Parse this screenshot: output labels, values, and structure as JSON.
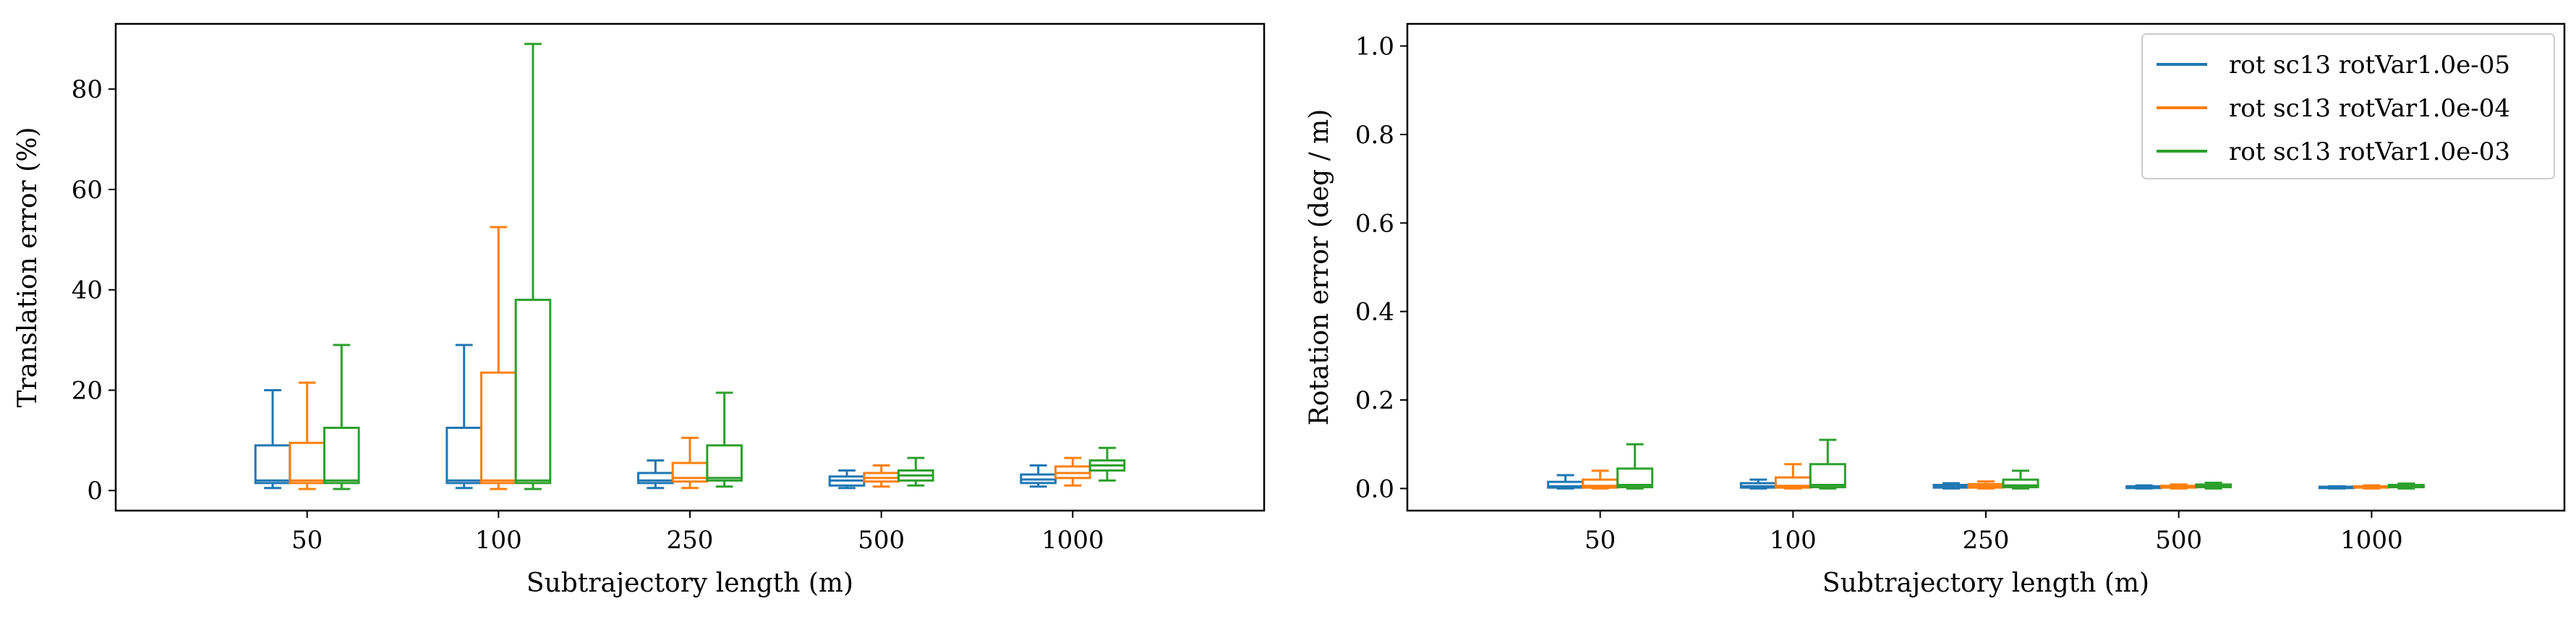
{
  "chart_data": [
    {
      "type": "box",
      "title": "",
      "xlabel": "Subtrajectory length (m)",
      "ylabel": "Translation error (%)",
      "categories": [
        "50",
        "100",
        "250",
        "500",
        "1000"
      ],
      "ylim": [
        -4,
        93
      ],
      "yticks": [
        0,
        20,
        40,
        60,
        80
      ],
      "series": [
        {
          "name": "rot sc13 rotVar1.0e-05",
          "color": "#1f77b4",
          "boxes": [
            {
              "whislo": 0.5,
              "q1": 1.5,
              "med": 2.0,
              "q3": 9.0,
              "whishi": 20.0
            },
            {
              "whislo": 0.5,
              "q1": 1.5,
              "med": 2.0,
              "q3": 12.5,
              "whishi": 29.0
            },
            {
              "whislo": 0.5,
              "q1": 1.5,
              "med": 2.0,
              "q3": 3.5,
              "whishi": 6.0
            },
            {
              "whislo": 0.5,
              "q1": 1.0,
              "med": 2.0,
              "q3": 2.8,
              "whishi": 4.0
            },
            {
              "whislo": 0.8,
              "q1": 1.5,
              "med": 2.2,
              "q3": 3.2,
              "whishi": 5.0
            }
          ]
        },
        {
          "name": "rot sc13 rotVar1.0e-04",
          "color": "#ff7f0e",
          "boxes": [
            {
              "whislo": 0.3,
              "q1": 1.5,
              "med": 2.0,
              "q3": 9.5,
              "whishi": 21.5
            },
            {
              "whislo": 0.3,
              "q1": 1.5,
              "med": 2.0,
              "q3": 23.5,
              "whishi": 52.5
            },
            {
              "whislo": 0.5,
              "q1": 1.8,
              "med": 2.5,
              "q3": 5.5,
              "whishi": 10.5
            },
            {
              "whislo": 0.8,
              "q1": 1.8,
              "med": 2.5,
              "q3": 3.5,
              "whishi": 5.0
            },
            {
              "whislo": 1.0,
              "q1": 2.5,
              "med": 3.5,
              "q3": 4.8,
              "whishi": 6.5
            }
          ]
        },
        {
          "name": "rot sc13 rotVar1.0e-03",
          "color": "#2ca02c",
          "boxes": [
            {
              "whislo": 0.3,
              "q1": 1.5,
              "med": 2.0,
              "q3": 12.5,
              "whishi": 29.0
            },
            {
              "whislo": 0.3,
              "q1": 1.5,
              "med": 2.0,
              "q3": 38.0,
              "whishi": 89.0
            },
            {
              "whislo": 0.8,
              "q1": 2.0,
              "med": 2.5,
              "q3": 9.0,
              "whishi": 19.5
            },
            {
              "whislo": 1.0,
              "q1": 2.0,
              "med": 3.0,
              "q3": 4.0,
              "whishi": 6.5
            },
            {
              "whislo": 2.0,
              "q1": 4.0,
              "med": 5.0,
              "q3": 6.0,
              "whishi": 8.5
            }
          ]
        }
      ]
    },
    {
      "type": "box",
      "title": "",
      "xlabel": "Subtrajectory length (m)",
      "ylabel": "Rotation error (deg / m)",
      "categories": [
        "50",
        "100",
        "250",
        "500",
        "1000"
      ],
      "ylim": [
        -0.05,
        1.05
      ],
      "yticks": [
        "0.0",
        "0.2",
        "0.4",
        "0.6",
        "0.8",
        "1.0"
      ],
      "legend": "top-right",
      "series": [
        {
          "name": "rot sc13 rotVar1.0e-05",
          "color": "#1f77b4",
          "boxes": [
            {
              "whislo": 0.0,
              "q1": 0.002,
              "med": 0.005,
              "q3": 0.015,
              "whishi": 0.03
            },
            {
              "whislo": 0.0,
              "q1": 0.002,
              "med": 0.005,
              "q3": 0.012,
              "whishi": 0.02
            },
            {
              "whislo": 0.0,
              "q1": 0.002,
              "med": 0.004,
              "q3": 0.008,
              "whishi": 0.012
            },
            {
              "whislo": 0.0,
              "q1": 0.001,
              "med": 0.003,
              "q3": 0.005,
              "whishi": 0.007
            },
            {
              "whislo": 0.0,
              "q1": 0.001,
              "med": 0.002,
              "q3": 0.004,
              "whishi": 0.005
            }
          ]
        },
        {
          "name": "rot sc13 rotVar1.0e-04",
          "color": "#ff7f0e",
          "boxes": [
            {
              "whislo": 0.0,
              "q1": 0.002,
              "med": 0.006,
              "q3": 0.02,
              "whishi": 0.04
            },
            {
              "whislo": 0.0,
              "q1": 0.002,
              "med": 0.006,
              "q3": 0.025,
              "whishi": 0.055
            },
            {
              "whislo": 0.0,
              "q1": 0.002,
              "med": 0.005,
              "q3": 0.01,
              "whishi": 0.016
            },
            {
              "whislo": 0.0,
              "q1": 0.002,
              "med": 0.004,
              "q3": 0.006,
              "whishi": 0.009
            },
            {
              "whislo": 0.0,
              "q1": 0.002,
              "med": 0.003,
              "q3": 0.005,
              "whishi": 0.007
            }
          ]
        },
        {
          "name": "rot sc13 rotVar1.0e-03",
          "color": "#2ca02c",
          "boxes": [
            {
              "whislo": 0.0,
              "q1": 0.003,
              "med": 0.008,
              "q3": 0.045,
              "whishi": 0.1
            },
            {
              "whislo": 0.0,
              "q1": 0.003,
              "med": 0.008,
              "q3": 0.055,
              "whishi": 0.11
            },
            {
              "whislo": 0.0,
              "q1": 0.003,
              "med": 0.007,
              "q3": 0.02,
              "whishi": 0.04
            },
            {
              "whislo": 0.0,
              "q1": 0.003,
              "med": 0.005,
              "q3": 0.009,
              "whishi": 0.013
            },
            {
              "whislo": 0.0,
              "q1": 0.003,
              "med": 0.005,
              "q3": 0.008,
              "whishi": 0.011
            }
          ]
        }
      ]
    }
  ]
}
